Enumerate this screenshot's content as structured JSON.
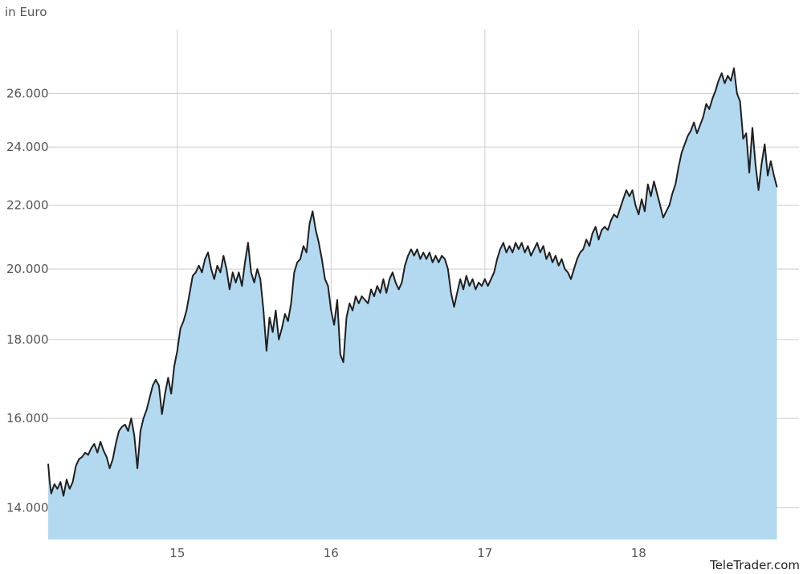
{
  "chart_data": {
    "type": "area",
    "title": "",
    "ylabel": "in Euro",
    "xlabel": "",
    "x_ticks": [
      {
        "value": 15,
        "label": "15"
      },
      {
        "value": 16,
        "label": "16"
      },
      {
        "value": 17,
        "label": "17"
      },
      {
        "value": 18,
        "label": "18"
      }
    ],
    "y_ticks": [
      {
        "value": 14000,
        "label": "14.000"
      },
      {
        "value": 16000,
        "label": "16.000"
      },
      {
        "value": 18000,
        "label": "18.000"
      },
      {
        "value": 20000,
        "label": "20.000"
      },
      {
        "value": 22000,
        "label": "22.000"
      },
      {
        "value": 24000,
        "label": "24.000"
      },
      {
        "value": 26000,
        "label": "26.000"
      }
    ],
    "xlim": [
      14.16,
      18.97
    ],
    "ylim": [
      13350,
      28600
    ],
    "y_scale": "log",
    "grid": true,
    "series": [
      {
        "points": [
          [
            14.16,
            14950
          ],
          [
            14.17,
            14550
          ],
          [
            14.18,
            14300
          ],
          [
            14.2,
            14500
          ],
          [
            14.22,
            14400
          ],
          [
            14.24,
            14550
          ],
          [
            14.26,
            14250
          ],
          [
            14.28,
            14600
          ],
          [
            14.3,
            14400
          ],
          [
            14.32,
            14550
          ],
          [
            14.34,
            14900
          ],
          [
            14.36,
            15050
          ],
          [
            14.38,
            15100
          ],
          [
            14.4,
            15200
          ],
          [
            14.42,
            15150
          ],
          [
            14.44,
            15300
          ],
          [
            14.46,
            15400
          ],
          [
            14.48,
            15200
          ],
          [
            14.5,
            15450
          ],
          [
            14.52,
            15250
          ],
          [
            14.54,
            15100
          ],
          [
            14.56,
            14850
          ],
          [
            14.58,
            15050
          ],
          [
            14.6,
            15400
          ],
          [
            14.62,
            15700
          ],
          [
            14.64,
            15800
          ],
          [
            14.66,
            15850
          ],
          [
            14.68,
            15700
          ],
          [
            14.7,
            16000
          ],
          [
            14.72,
            15600
          ],
          [
            14.74,
            14850
          ],
          [
            14.76,
            15700
          ],
          [
            14.78,
            16000
          ],
          [
            14.8,
            16200
          ],
          [
            14.82,
            16500
          ],
          [
            14.84,
            16800
          ],
          [
            14.86,
            16950
          ],
          [
            14.88,
            16800
          ],
          [
            14.9,
            16100
          ],
          [
            14.92,
            16600
          ],
          [
            14.94,
            17000
          ],
          [
            14.96,
            16600
          ],
          [
            14.98,
            17300
          ],
          [
            15.0,
            17700
          ],
          [
            15.02,
            18300
          ],
          [
            15.04,
            18500
          ],
          [
            15.06,
            18800
          ],
          [
            15.08,
            19300
          ],
          [
            15.1,
            19800
          ],
          [
            15.12,
            19900
          ],
          [
            15.14,
            20100
          ],
          [
            15.16,
            19900
          ],
          [
            15.18,
            20300
          ],
          [
            15.2,
            20500
          ],
          [
            15.22,
            20000
          ],
          [
            15.24,
            19700
          ],
          [
            15.26,
            20100
          ],
          [
            15.28,
            19900
          ],
          [
            15.3,
            20400
          ],
          [
            15.32,
            20000
          ],
          [
            15.34,
            19400
          ],
          [
            15.36,
            19900
          ],
          [
            15.38,
            19600
          ],
          [
            15.4,
            19900
          ],
          [
            15.42,
            19500
          ],
          [
            15.44,
            20200
          ],
          [
            15.46,
            20800
          ],
          [
            15.48,
            19900
          ],
          [
            15.5,
            19600
          ],
          [
            15.52,
            20000
          ],
          [
            15.54,
            19700
          ],
          [
            15.56,
            18800
          ],
          [
            15.58,
            17700
          ],
          [
            15.6,
            18600
          ],
          [
            15.62,
            18200
          ],
          [
            15.64,
            18800
          ],
          [
            15.66,
            18000
          ],
          [
            15.68,
            18300
          ],
          [
            15.7,
            18700
          ],
          [
            15.72,
            18500
          ],
          [
            15.74,
            19000
          ],
          [
            15.76,
            19900
          ],
          [
            15.78,
            20200
          ],
          [
            15.8,
            20300
          ],
          [
            15.82,
            20700
          ],
          [
            15.84,
            20500
          ],
          [
            15.86,
            21400
          ],
          [
            15.88,
            21800
          ],
          [
            15.9,
            21200
          ],
          [
            15.92,
            20800
          ],
          [
            15.94,
            20300
          ],
          [
            15.96,
            19700
          ],
          [
            15.98,
            19500
          ],
          [
            16.0,
            18800
          ],
          [
            16.02,
            18400
          ],
          [
            16.04,
            19100
          ],
          [
            16.06,
            17600
          ],
          [
            16.08,
            17400
          ],
          [
            16.1,
            18600
          ],
          [
            16.12,
            19000
          ],
          [
            16.14,
            18800
          ],
          [
            16.16,
            19200
          ],
          [
            16.18,
            19000
          ],
          [
            16.2,
            19200
          ],
          [
            16.22,
            19100
          ],
          [
            16.24,
            19000
          ],
          [
            16.26,
            19400
          ],
          [
            16.28,
            19200
          ],
          [
            16.3,
            19500
          ],
          [
            16.32,
            19300
          ],
          [
            16.34,
            19700
          ],
          [
            16.36,
            19300
          ],
          [
            16.38,
            19700
          ],
          [
            16.4,
            19900
          ],
          [
            16.42,
            19600
          ],
          [
            16.44,
            19400
          ],
          [
            16.46,
            19600
          ],
          [
            16.48,
            20100
          ],
          [
            16.5,
            20400
          ],
          [
            16.52,
            20600
          ],
          [
            16.54,
            20400
          ],
          [
            16.56,
            20600
          ],
          [
            16.58,
            20300
          ],
          [
            16.6,
            20500
          ],
          [
            16.62,
            20300
          ],
          [
            16.64,
            20500
          ],
          [
            16.66,
            20200
          ],
          [
            16.68,
            20400
          ],
          [
            16.7,
            20200
          ],
          [
            16.72,
            20400
          ],
          [
            16.74,
            20300
          ],
          [
            16.76,
            20000
          ],
          [
            16.78,
            19300
          ],
          [
            16.8,
            18900
          ],
          [
            16.82,
            19300
          ],
          [
            16.84,
            19700
          ],
          [
            16.86,
            19400
          ],
          [
            16.88,
            19800
          ],
          [
            16.9,
            19500
          ],
          [
            16.92,
            19700
          ],
          [
            16.94,
            19400
          ],
          [
            16.96,
            19600
          ],
          [
            16.98,
            19500
          ],
          [
            17.0,
            19700
          ],
          [
            17.02,
            19500
          ],
          [
            17.04,
            19700
          ],
          [
            17.06,
            19900
          ],
          [
            17.08,
            20300
          ],
          [
            17.1,
            20600
          ],
          [
            17.12,
            20800
          ],
          [
            17.14,
            20500
          ],
          [
            17.16,
            20700
          ],
          [
            17.18,
            20500
          ],
          [
            17.2,
            20800
          ],
          [
            17.22,
            20600
          ],
          [
            17.24,
            20800
          ],
          [
            17.26,
            20500
          ],
          [
            17.28,
            20700
          ],
          [
            17.3,
            20400
          ],
          [
            17.32,
            20600
          ],
          [
            17.34,
            20800
          ],
          [
            17.36,
            20500
          ],
          [
            17.38,
            20700
          ],
          [
            17.4,
            20300
          ],
          [
            17.42,
            20500
          ],
          [
            17.44,
            20200
          ],
          [
            17.46,
            20400
          ],
          [
            17.48,
            20100
          ],
          [
            17.5,
            20300
          ],
          [
            17.52,
            20000
          ],
          [
            17.54,
            19900
          ],
          [
            17.56,
            19700
          ],
          [
            17.58,
            20000
          ],
          [
            17.6,
            20300
          ],
          [
            17.62,
            20500
          ],
          [
            17.64,
            20600
          ],
          [
            17.66,
            20900
          ],
          [
            17.68,
            20700
          ],
          [
            17.7,
            21100
          ],
          [
            17.72,
            21300
          ],
          [
            17.74,
            20900
          ],
          [
            17.76,
            21200
          ],
          [
            17.78,
            21300
          ],
          [
            17.8,
            21200
          ],
          [
            17.82,
            21500
          ],
          [
            17.84,
            21700
          ],
          [
            17.86,
            21600
          ],
          [
            17.88,
            21900
          ],
          [
            17.9,
            22200
          ],
          [
            17.92,
            22500
          ],
          [
            17.94,
            22300
          ],
          [
            17.96,
            22500
          ],
          [
            17.98,
            22000
          ],
          [
            18.0,
            21700
          ],
          [
            18.02,
            22200
          ],
          [
            18.04,
            21800
          ],
          [
            18.06,
            22700
          ],
          [
            18.08,
            22300
          ],
          [
            18.1,
            22800
          ],
          [
            18.12,
            22400
          ],
          [
            18.14,
            22000
          ],
          [
            18.16,
            21600
          ],
          [
            18.18,
            21800
          ],
          [
            18.2,
            22000
          ],
          [
            18.22,
            22400
          ],
          [
            18.24,
            22700
          ],
          [
            18.26,
            23300
          ],
          [
            18.28,
            23800
          ],
          [
            18.3,
            24100
          ],
          [
            18.32,
            24400
          ],
          [
            18.34,
            24600
          ],
          [
            18.36,
            24900
          ],
          [
            18.38,
            24500
          ],
          [
            18.4,
            24800
          ],
          [
            18.42,
            25100
          ],
          [
            18.44,
            25600
          ],
          [
            18.46,
            25400
          ],
          [
            18.48,
            25800
          ],
          [
            18.5,
            26100
          ],
          [
            18.52,
            26500
          ],
          [
            18.54,
            26800
          ],
          [
            18.56,
            26400
          ],
          [
            18.58,
            26700
          ],
          [
            18.6,
            26500
          ],
          [
            18.62,
            27000
          ],
          [
            18.64,
            26000
          ],
          [
            18.66,
            25700
          ],
          [
            18.68,
            24300
          ],
          [
            18.7,
            24500
          ],
          [
            18.72,
            23100
          ],
          [
            18.74,
            24700
          ],
          [
            18.76,
            23400
          ],
          [
            18.78,
            22500
          ],
          [
            18.8,
            23400
          ],
          [
            18.82,
            24100
          ],
          [
            18.84,
            23000
          ],
          [
            18.86,
            23500
          ],
          [
            18.88,
            23000
          ],
          [
            18.9,
            22600
          ]
        ]
      }
    ],
    "colors": {
      "fill": "#b3d9f1",
      "line": "#1f1f1f",
      "grid": "#cccccc"
    }
  },
  "credit": "TeleTrader.com"
}
